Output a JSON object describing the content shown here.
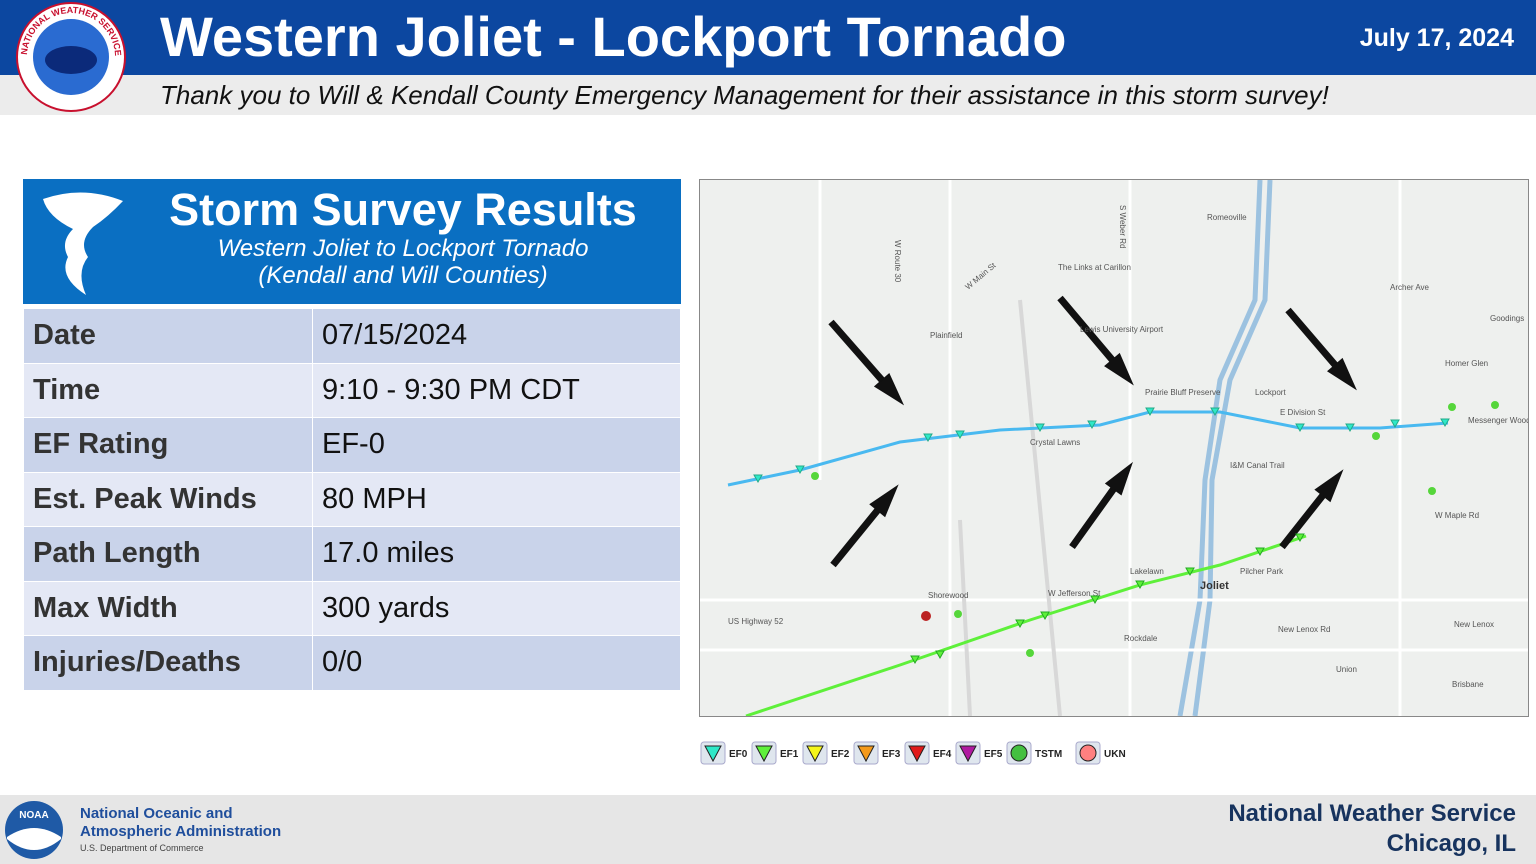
{
  "header": {
    "title": "Western Joliet - Lockport Tornado",
    "date": "July 17, 2024",
    "subtitle": "Thank you to Will & Kendall County Emergency Management for their assistance in this storm survey!",
    "logo_text": "NATIONAL WEATHER SERVICE"
  },
  "card": {
    "title": "Storm Survey Results",
    "subtitle_1": "Western Joliet to Lockport Tornado",
    "subtitle_2": "(Kendall and Will Counties)"
  },
  "table": {
    "rows": [
      [
        "Date",
        "07/15/2024"
      ],
      [
        "Time",
        "9:10 - 9:30 PM CDT"
      ],
      [
        "EF Rating",
        "EF-0"
      ],
      [
        "Est. Peak Winds",
        "80 MPH"
      ],
      [
        "Path Length",
        "17.0 miles"
      ],
      [
        "Max Width",
        "300 yards"
      ],
      [
        "Injuries/Deaths",
        "0/0"
      ]
    ]
  },
  "map": {
    "labels": [
      "Romeoville",
      "The Links at Carillon",
      "Plainfield",
      "Lewis University Airport",
      "Lockport",
      "Prairie Bluff Preserve",
      "Crystal Lawns",
      "I&M Canal Trail",
      "Homer Glen",
      "Goodings",
      "Messenger Woods Forest Preserve",
      "W Maple Rd",
      "Pilcher Park",
      "Joliet",
      "Lakelawn",
      "Shorewood",
      "W Jefferson St",
      "Rockdale",
      "US Highway 52",
      "New Lenox Rd",
      "New Lenox",
      "Union",
      "Brisbane",
      "E Division St",
      "W Main St",
      "S Weber Rd",
      "W Route 30",
      "Archer Ave"
    ]
  },
  "legend": [
    "EF0",
    "EF1",
    "EF2",
    "EF3",
    "EF4",
    "EF5",
    "TSTM",
    "UKN"
  ],
  "footer": {
    "noaa_logo": "NOAA",
    "noaa_1": "National Oceanic and",
    "noaa_2": "Atmospheric Administration",
    "noaa_3": "U.S. Department of Commerce",
    "nws_1": "National Weather Service",
    "nws_2": "Chicago, IL"
  }
}
